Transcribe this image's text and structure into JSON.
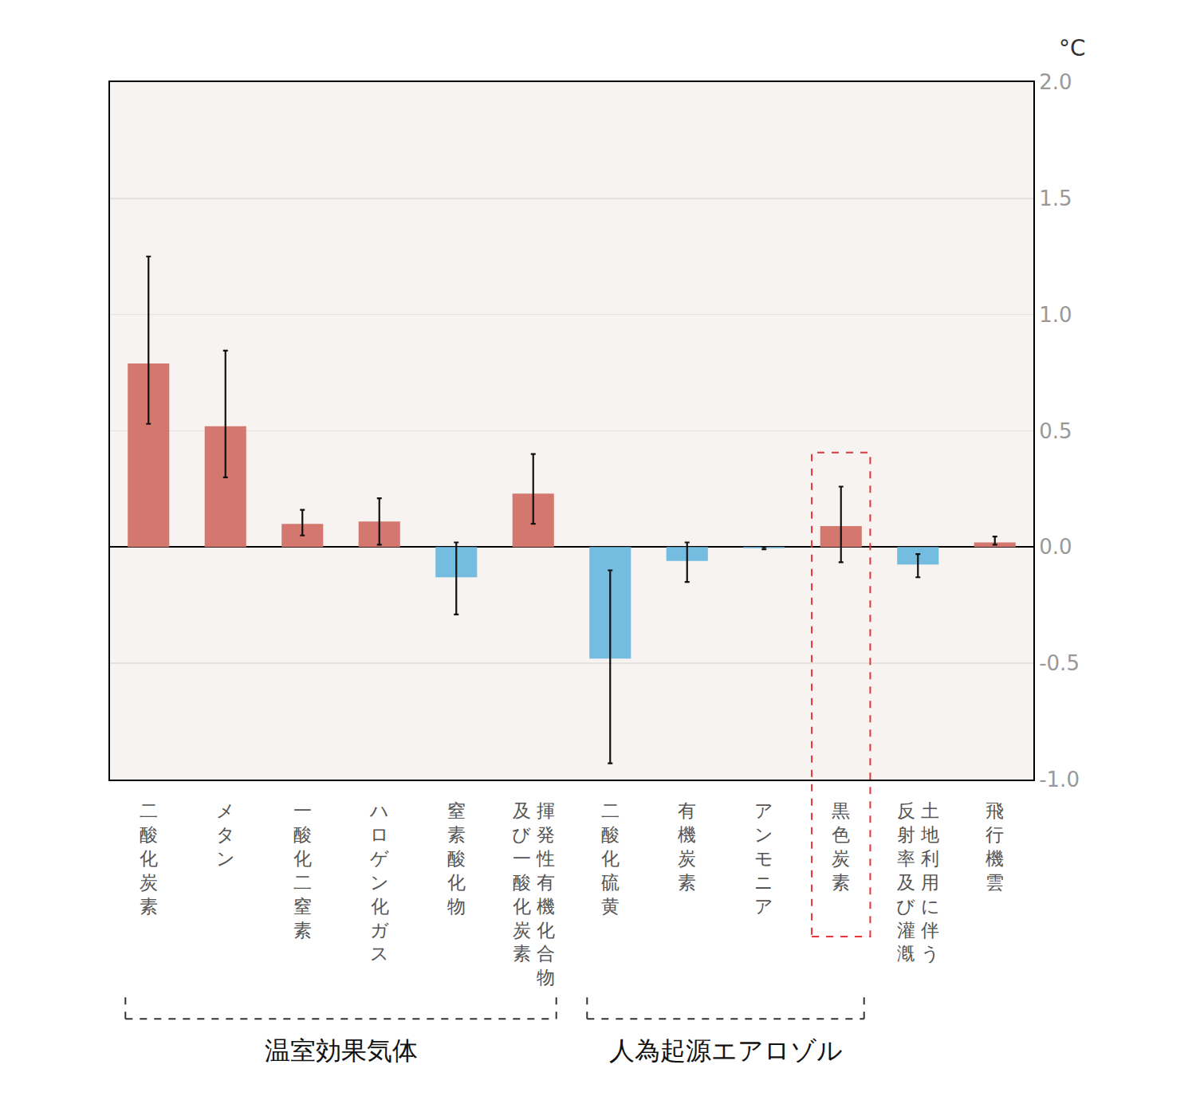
{
  "chart_data": {
    "type": "bar",
    "ylabel": "°C",
    "categories": [
      "二酸化炭素",
      "メタン",
      "一酸化二窒素",
      "ハロゲン化ガス",
      "窒素酸化物",
      "揮発性有機化合物\n及び一酸化炭素",
      "二酸化硫黄",
      "有機炭素",
      "アンモニア",
      "黒色炭素",
      "土地利用に伴う\n反射率及び灌漑",
      "飛行機雲"
    ],
    "values": [
      0.79,
      0.52,
      0.1,
      0.11,
      -0.13,
      0.23,
      -0.48,
      -0.06,
      -0.005,
      0.09,
      -0.075,
      0.02
    ],
    "ci_low": [
      0.53,
      0.3,
      0.05,
      0.01,
      -0.29,
      0.1,
      -0.93,
      -0.15,
      -0.01,
      -0.065,
      -0.13,
      0.01
    ],
    "ci_high": [
      1.25,
      0.845,
      0.16,
      0.21,
      0.02,
      0.4,
      -0.1,
      0.02,
      0.0,
      0.26,
      -0.03,
      0.045
    ],
    "colors": [
      "#d4786f",
      "#d4786f",
      "#d4786f",
      "#d4786f",
      "#74bde0",
      "#d4786f",
      "#74bde0",
      "#74bde0",
      "#74bde0",
      "#d4786f",
      "#74bde0",
      "#d4786f"
    ],
    "ylim": [
      -1,
      2
    ],
    "yticks": [
      {
        "value": -1,
        "label": "-1.0"
      },
      -0.5,
      {
        "value": 0,
        "label": "0.0"
      },
      0.5,
      {
        "value": 1,
        "label": "1.0"
      },
      1.5,
      {
        "value": 2,
        "label": "2.0"
      }
    ],
    "grid": true,
    "groups": [
      {
        "text": "温室効果気体",
        "from": "二酸化炭素",
        "to": "揮発性有機化合物\n及び一酸化炭素"
      },
      {
        "text": "人為起源エアロゾル",
        "from": "二酸化硫黄",
        "to": "黒色炭素"
      }
    ],
    "highlight": "黒色炭素"
  }
}
